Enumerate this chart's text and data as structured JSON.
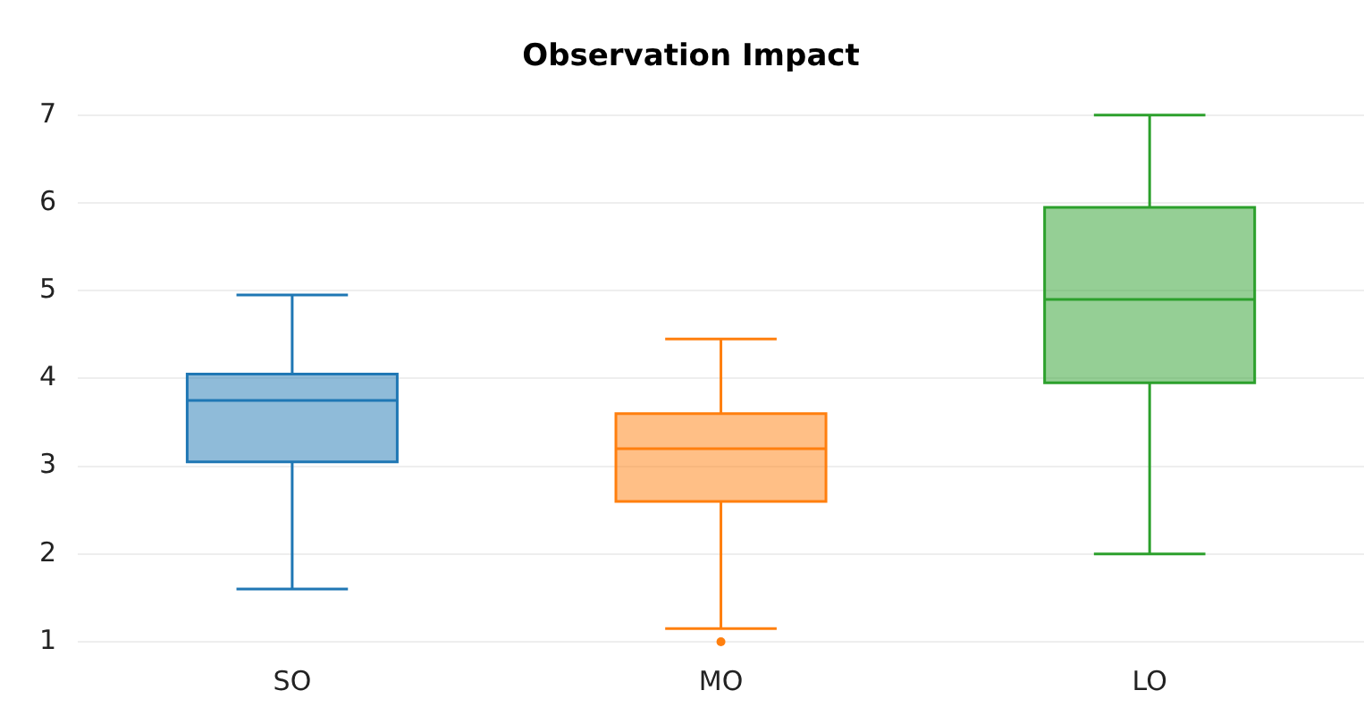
{
  "chart_data": {
    "type": "box",
    "title": "Observation Impact",
    "categories": [
      "SO",
      "MO",
      "LO"
    ],
    "colors": [
      "#1f77b4",
      "#ff7f0e",
      "#2ca02c"
    ],
    "boxes": [
      {
        "low": 1.6,
        "q1": 3.05,
        "median": 3.75,
        "q3": 4.05,
        "high": 4.95
      },
      {
        "low": 1.15,
        "q1": 2.6,
        "median": 3.2,
        "q3": 3.6,
        "high": 4.45,
        "outliers": [
          1.0
        ]
      },
      {
        "low": 2,
        "q1": 3.95,
        "median": 4.9,
        "q3": 5.95,
        "high": 7
      }
    ],
    "ylim": [
      1,
      7
    ],
    "yticks": [
      1,
      2,
      3,
      4,
      5,
      6,
      7
    ],
    "grid": "y",
    "legend": false
  }
}
